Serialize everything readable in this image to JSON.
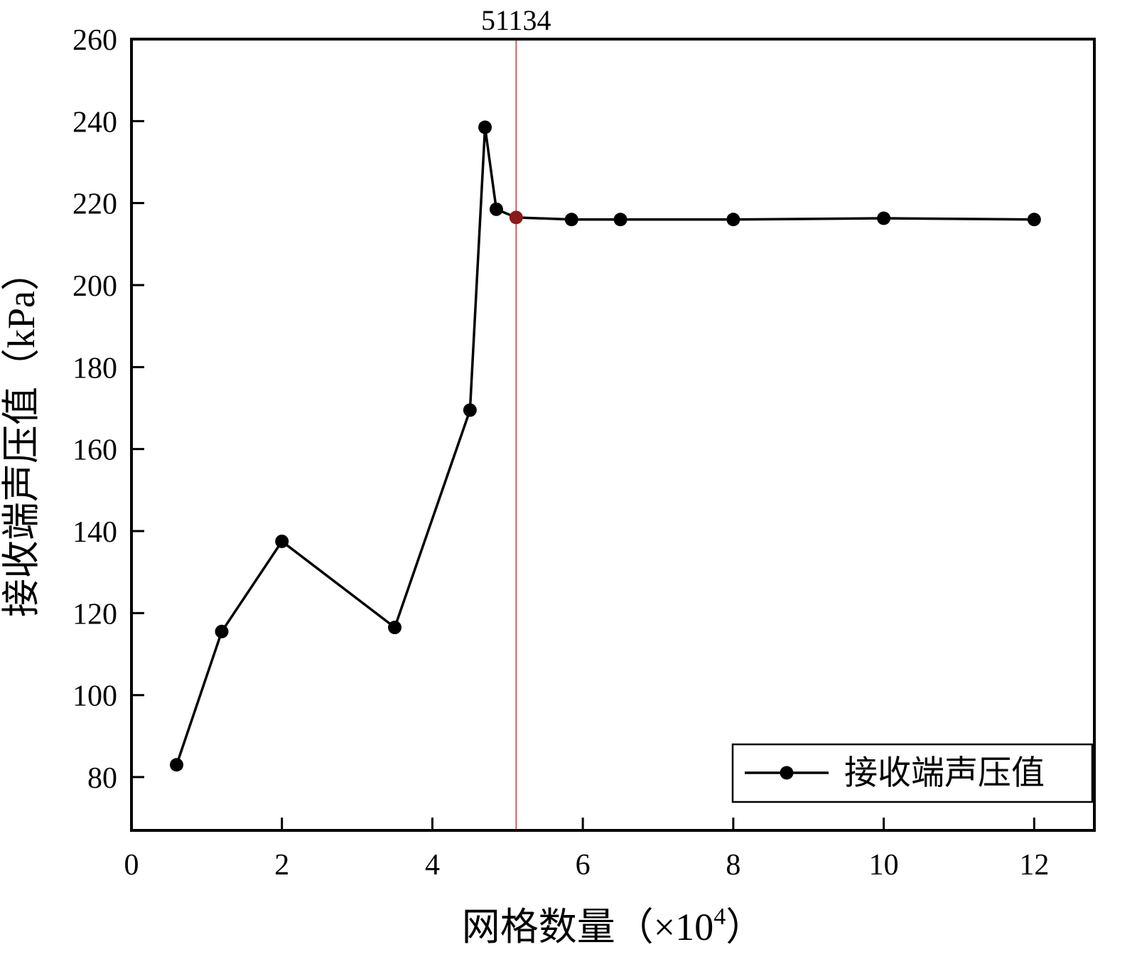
{
  "chart_data": {
    "type": "line",
    "title": "",
    "xlabel": "网格数量（×10⁴）",
    "xlabel_parts": {
      "prefix": "网格数量（×10",
      "superscript": "4",
      "suffix": "）"
    },
    "ylabel": "接收端声压值（kPa）",
    "xlim": [
      0,
      12.8
    ],
    "ylim": [
      67,
      260
    ],
    "xticks": [
      0,
      2,
      4,
      6,
      8,
      10,
      12
    ],
    "yticks": [
      80,
      100,
      120,
      140,
      160,
      180,
      200,
      220,
      240,
      260
    ],
    "grid": "off",
    "series": [
      {
        "name": "接收端声压值",
        "color": "#000000",
        "marker": "circle",
        "x": [
          0.6,
          1.2,
          2.0,
          3.5,
          4.5,
          4.7,
          4.85,
          5.1134,
          5.85,
          6.5,
          8.0,
          10.0,
          12.0
        ],
        "y": [
          83,
          115.5,
          137.5,
          116.5,
          169.5,
          238.5,
          218.5,
          216.5,
          216,
          216,
          216,
          216.3,
          216
        ]
      }
    ],
    "annotation": {
      "label": "51134",
      "x": 5.1134,
      "line_color": "#c43b3b",
      "point_color": "#8b1a1a"
    },
    "legend": {
      "position": "bottom-right",
      "entries": [
        "接收端声压值"
      ]
    },
    "colors": {
      "axis": "#000000",
      "background": "#ffffff"
    }
  }
}
